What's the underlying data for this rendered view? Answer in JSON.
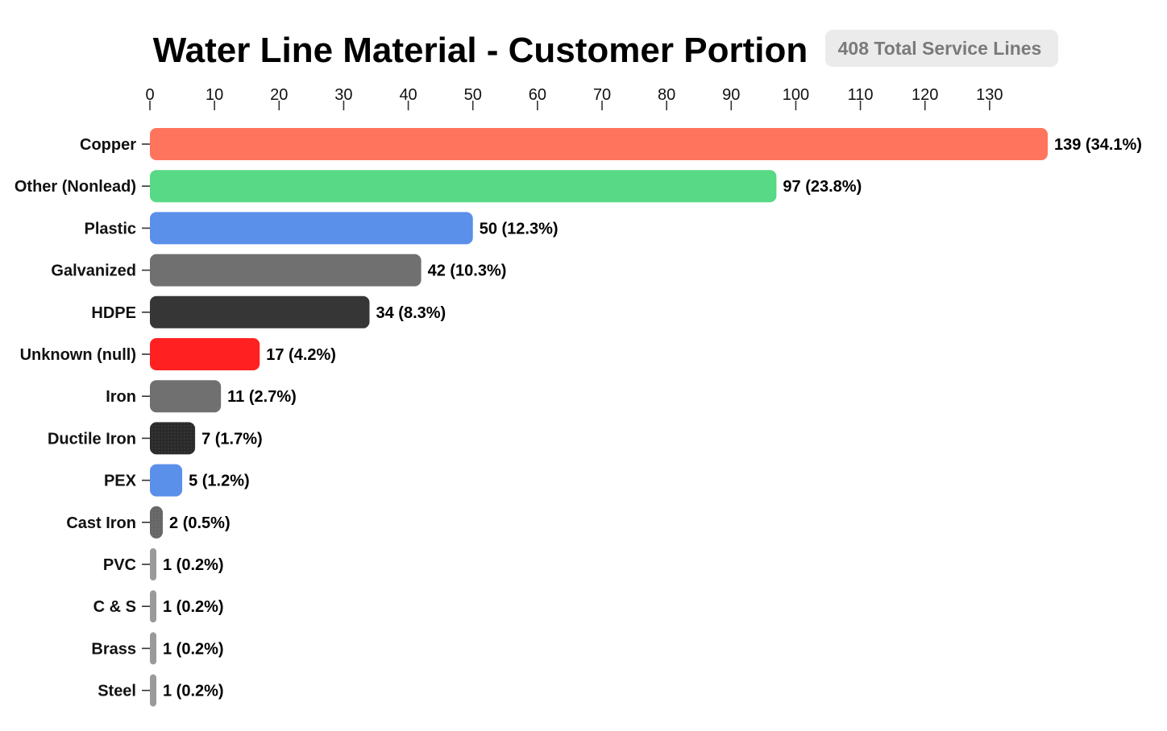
{
  "chart_data": {
    "type": "bar",
    "orientation": "horizontal",
    "title": "Water Line Material - Customer Portion",
    "total_badge": "408 Total Service Lines",
    "xlabel": "",
    "ylabel": "",
    "xlim": [
      0,
      139
    ],
    "x_ticks": [
      "0",
      "10",
      "20",
      "30",
      "40",
      "50",
      "60",
      "70",
      "80",
      "90",
      "100",
      "110",
      "120",
      "130"
    ],
    "x_axis_position": "top",
    "grid": false,
    "legend": "none",
    "categories": [
      "Copper",
      "Other (Nonlead)",
      "Plastic",
      "Galvanized",
      "HDPE",
      "Unknown (null)",
      "Iron",
      "Ductile Iron",
      "PEX",
      "Cast Iron",
      "PVC",
      "C & S",
      "Brass",
      "Steel"
    ],
    "values": [
      139,
      97,
      50,
      42,
      34,
      17,
      11,
      7,
      5,
      2,
      1,
      1,
      1,
      1
    ],
    "data_labels": [
      "139 (34.1%)",
      "97 (23.8%)",
      "50 (12.3%)",
      "42 (10.3%)",
      "34 (8.3%)",
      "17 (4.2%)",
      "11 (2.7%)",
      "7 (1.7%)",
      "5 (1.2%)",
      "2 (0.5%)",
      "1 (0.2%)",
      "1 (0.2%)",
      "1 (0.2%)",
      "1 (0.2%)"
    ],
    "colors": [
      "#ff745c",
      "#58d985",
      "#5a8fea",
      "#707070",
      "#363636",
      "#ff2121",
      "#707070",
      "#2a2a2a",
      "#5a8fea",
      "#666666",
      "#9a9a9a",
      "#9a9a9a",
      "#9a9a9a",
      "#9a9a9a"
    ]
  }
}
